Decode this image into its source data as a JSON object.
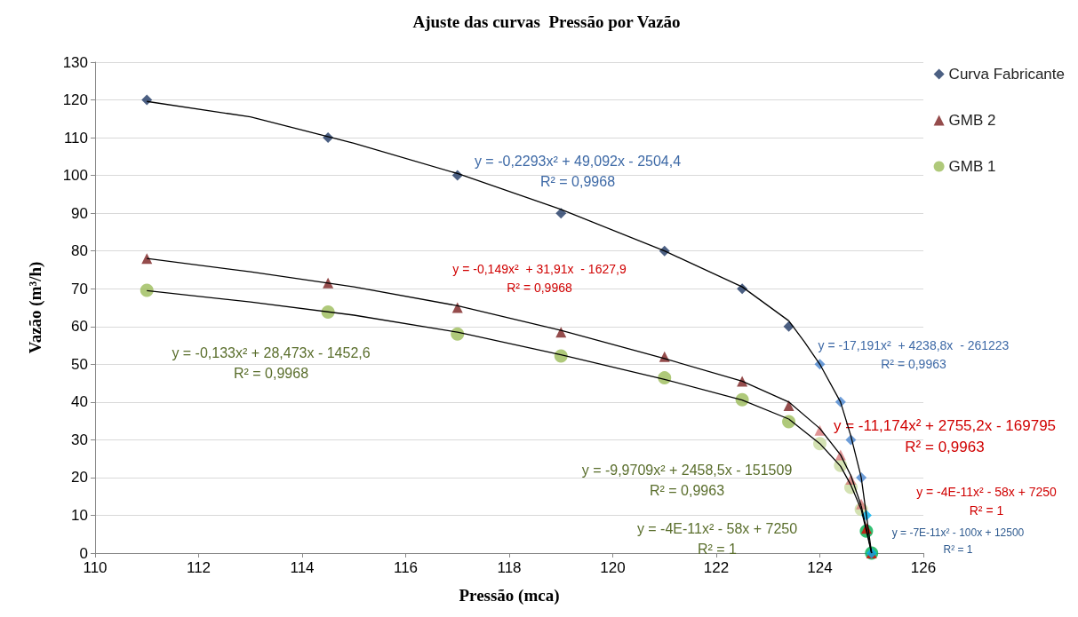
{
  "chart_data": {
    "type": "scatter",
    "title": "Ajuste das curvas  Pressão por Vazão",
    "xlabel": "Pressão (mca)",
    "ylabel": "Vazão (m³/h)",
    "xlim": [
      110,
      126
    ],
    "xticks": [
      110,
      112,
      114,
      116,
      118,
      120,
      122,
      124,
      126
    ],
    "ylim": [
      0,
      130
    ],
    "yticks": [
      0,
      10,
      20,
      30,
      40,
      50,
      60,
      70,
      80,
      90,
      100,
      110,
      120,
      130
    ],
    "grid": "y",
    "legend": "top right",
    "x": [
      111,
      114.5,
      117,
      119,
      121,
      122.5,
      123.4,
      124,
      124.4,
      124.6,
      124.8,
      124.9,
      125
    ],
    "series": [
      {
        "name": "Curva Fabricante",
        "color": "#1f3864",
        "marker": "diamond",
        "values": [
          120,
          110,
          100,
          90,
          80,
          70,
          60,
          50,
          40,
          30,
          20,
          10,
          0
        ],
        "colors": [
          "#1f3864",
          "#1f3864",
          "#1f3864",
          "#1f3864",
          "#1f3864",
          "#1f3864",
          "#1f3864",
          "#4a86d0",
          "#4a86d0",
          "#4a86d0",
          "#4a86d0",
          "#00b0f0",
          "#00b0f0"
        ]
      },
      {
        "name": "GMB 2",
        "color": "#7b1f1f",
        "marker": "triangle",
        "values": [
          78,
          71.5,
          65,
          58.5,
          52,
          45.5,
          39,
          32.5,
          26,
          19.5,
          13,
          6.5,
          0
        ],
        "colors": [
          "#7b1f1f",
          "#7b1f1f",
          "#7b1f1f",
          "#7b1f1f",
          "#7b1f1f",
          "#7b1f1f",
          "#7b1f1f",
          "#d8797b",
          "#d8797b",
          "#d8797b",
          "#d8797b",
          "#e00000",
          "#e00000"
        ]
      },
      {
        "name": "GMB 1",
        "color": "#9bbb59",
        "marker": "circle",
        "values": [
          69.6,
          63.8,
          58,
          52.2,
          46.4,
          40.6,
          34.8,
          29,
          23.2,
          17.4,
          11.6,
          5.8,
          0
        ],
        "colors": [
          "#9bbb59",
          "#9bbb59",
          "#9bbb59",
          "#9bbb59",
          "#9bbb59",
          "#9bbb59",
          "#9bbb59",
          "#c9dba0",
          "#c9dba0",
          "#c9dba0",
          "#c9dba0",
          "#00b050",
          "#00b050"
        ]
      },
      {
        "type": "line",
        "color": "#000000",
        "marker": "none",
        "x": [
          111,
          113,
          115,
          117,
          119,
          121,
          122.5,
          123.4
        ],
        "values": [
          119.6,
          115.5,
          108.5,
          100.5,
          91,
          80,
          70.5,
          61.5
        ]
      },
      {
        "type": "line",
        "color": "#000000",
        "marker": "none",
        "x": [
          123.4,
          123.7,
          124,
          124.4,
          124.6,
          124.8
        ],
        "values": [
          61.5,
          56,
          50,
          40,
          31,
          20
        ]
      },
      {
        "type": "line",
        "color": "#000000",
        "marker": "none",
        "x": [
          124.8,
          124.9,
          125
        ],
        "values": [
          20,
          10,
          0
        ]
      },
      {
        "type": "line",
        "color": "#000000",
        "marker": "none",
        "x": [
          111,
          113,
          115,
          117,
          119,
          121,
          122.5,
          123.4
        ],
        "values": [
          78,
          74.5,
          70.5,
          65.5,
          59,
          51.5,
          45.5,
          40
        ]
      },
      {
        "type": "line",
        "color": "#000000",
        "marker": "none",
        "x": [
          123.4,
          124,
          124.4,
          124.6,
          124.8
        ],
        "values": [
          40,
          33,
          26,
          20.5,
          12.5
        ]
      },
      {
        "type": "line",
        "color": "#000000",
        "marker": "none",
        "x": [
          124.8,
          124.9,
          125
        ],
        "values": [
          12.5,
          6.5,
          0
        ]
      },
      {
        "type": "line",
        "color": "#000000",
        "marker": "none",
        "x": [
          111,
          113,
          115,
          117,
          119,
          121,
          122.5,
          123.4
        ],
        "values": [
          69.5,
          66.5,
          63,
          58.5,
          52.5,
          46,
          40.5,
          35.5
        ]
      },
      {
        "type": "line",
        "color": "#000000",
        "marker": "none",
        "x": [
          123.4,
          124,
          124.4,
          124.6,
          124.8
        ],
        "values": [
          35.5,
          29,
          23,
          18,
          11.5
        ]
      },
      {
        "type": "line",
        "color": "#000000",
        "marker": "none",
        "x": [
          124.8,
          124.9,
          125
        ],
        "values": [
          11.5,
          5.8,
          0
        ]
      }
    ],
    "annotations": [
      "y = -0,2293x² + 49,092x - 2504,4\nR² = 0,9968",
      "y = -0,149x²  + 31,91x  - 1627,9\nR² = 0,9968",
      "y = -0,133x² + 28,473x - 1452,6\nR² = 0,9968",
      "y = -17,191x²  + 4238,8x  - 261223\nR² = 0,9963",
      "y = -11,174x² + 2755,2x - 169795\nR² = 0,9963",
      "y = -9,9709x² + 2458,5x - 151509\nR² = 0,9963",
      "y = -4E-11x² - 58x + 7250\nR² = 1",
      "y = -4E-11x² - 58x + 7250\nR² = 1",
      "y = -7E-11x² - 100x + 12500\nR² = 1"
    ]
  }
}
